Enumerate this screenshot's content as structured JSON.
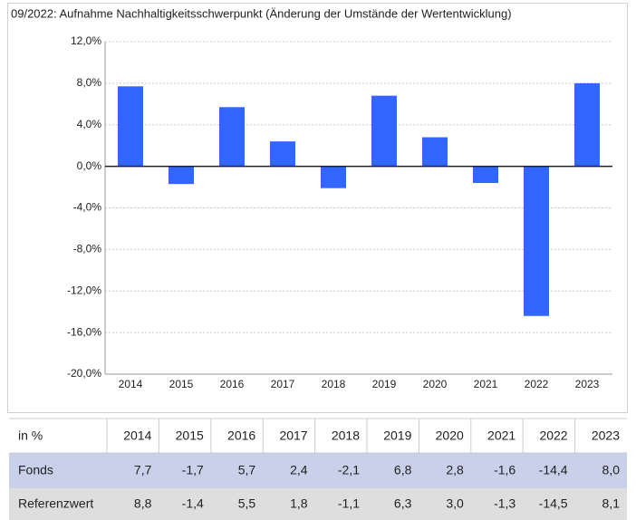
{
  "chart_data": {
    "type": "bar",
    "title": "09/2022: Aufnahme Nachhaltigkeitsschwerpunkt (Änderung der Umstände der Wertentwicklung)",
    "categories": [
      "2014",
      "2015",
      "2016",
      "2017",
      "2018",
      "2019",
      "2020",
      "2021",
      "2022",
      "2023"
    ],
    "values": [
      7.7,
      -1.7,
      5.7,
      2.4,
      -2.1,
      6.8,
      2.8,
      -1.6,
      -14.4,
      8.0
    ],
    "value_labels": [
      "7,7",
      "-1,7",
      "5,7",
      "2,4",
      "-2,1",
      "6,8",
      "2,8",
      "-1,6",
      "-14,4",
      "8,0"
    ],
    "color": "#3366ff",
    "ylim": [
      -20,
      12
    ],
    "yticks": [
      {
        "value": 12,
        "label": "12,0%"
      },
      {
        "value": 8,
        "label": "8,0%"
      },
      {
        "value": 4,
        "label": "4,0%"
      },
      {
        "value": 0,
        "label": "0,0%"
      },
      {
        "value": -4,
        "label": "-4,0%"
      },
      {
        "value": -8,
        "label": "-8,0%"
      },
      {
        "value": -12,
        "label": "-12,0%"
      },
      {
        "value": -16,
        "label": "-16,0%"
      },
      {
        "value": -20,
        "label": "-20,0%"
      }
    ],
    "grid": true
  },
  "table": {
    "corner": "in %",
    "row_names": [
      "Fonds",
      "Referenzwert"
    ],
    "reference": [
      "8,8",
      "-1,4",
      "5,5",
      "1,8",
      "-1,1",
      "6,3",
      "3,0",
      "-1,3",
      "-14,5",
      "8,1"
    ]
  }
}
